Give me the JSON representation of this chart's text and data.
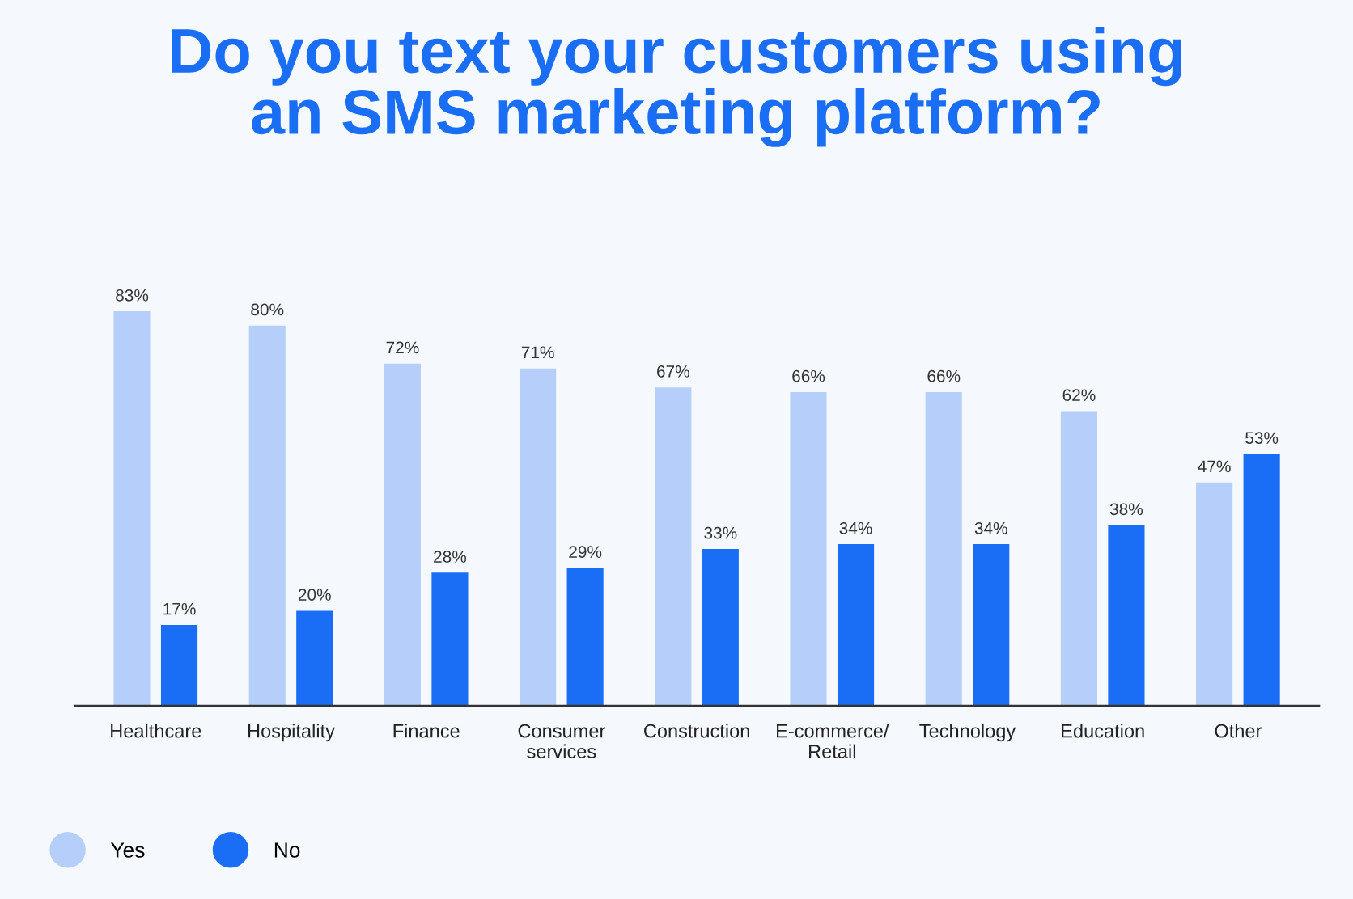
{
  "chart_data": {
    "type": "bar",
    "title": "Do you text your customers using\nan SMS marketing platform?",
    "categories": [
      "Healthcare",
      "Hospitality",
      "Finance",
      "Consumer\nservices",
      "Construction",
      "E-commerce/\nRetail",
      "Technology",
      "Education",
      "Other"
    ],
    "series": [
      {
        "name": "Yes",
        "color": "#b5cffa",
        "values": [
          83,
          80,
          72,
          71,
          67,
          66,
          66,
          62,
          47
        ],
        "value_labels": [
          "83%",
          "80%",
          "72%",
          "71%",
          "67%",
          "66%",
          "66%",
          "62%",
          "47%"
        ]
      },
      {
        "name": "No",
        "color": "#1a6ef5",
        "values": [
          17,
          20,
          28,
          29,
          33,
          34,
          34,
          38,
          53
        ],
        "value_labels": [
          "17%",
          "20%",
          "28%",
          "29%",
          "33%",
          "34%",
          "34%",
          "38%",
          "53%"
        ]
      }
    ],
    "grid": false,
    "legend": "bottom left"
  }
}
